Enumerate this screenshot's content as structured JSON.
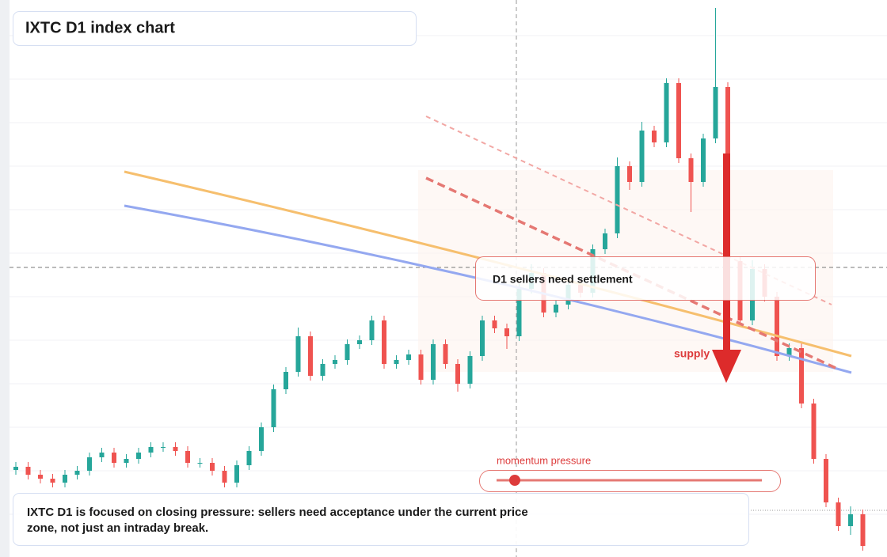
{
  "header": {
    "title": "IXTC D1 index chart"
  },
  "chart_data": {
    "type": "candlestick",
    "ylim": [
      0,
      704
    ],
    "up_color": "#26a69a",
    "down_color": "#ef5350",
    "open": [
      110,
      114,
      104,
      99,
      94,
      104,
      109,
      126,
      132,
      119,
      124,
      132,
      139,
      139,
      134,
      119,
      119,
      109,
      94,
      116,
      134,
      164,
      212,
      234,
      279,
      229,
      244,
      249,
      269,
      274,
      299,
      244,
      249,
      256,
      224,
      269,
      244,
      219,
      254,
      299,
      289,
      279,
      339,
      359,
      309,
      319,
      344,
      334,
      389,
      409,
      494,
      474,
      539,
      524,
      599,
      504,
      474,
      529,
      594,
      374,
      299,
      364,
      329,
      254,
      264,
      194,
      124,
      69,
      39,
      54
    ],
    "high": [
      120,
      120,
      110,
      105,
      110,
      115,
      132,
      138,
      138,
      130,
      138,
      145,
      145,
      145,
      140,
      125,
      125,
      115,
      122,
      140,
      170,
      218,
      240,
      290,
      285,
      250,
      255,
      275,
      280,
      305,
      305,
      255,
      262,
      262,
      275,
      275,
      250,
      260,
      305,
      305,
      295,
      345,
      370,
      365,
      325,
      350,
      350,
      395,
      415,
      505,
      500,
      550,
      545,
      605,
      605,
      510,
      535,
      694,
      600,
      380,
      375,
      370,
      335,
      270,
      270,
      200,
      130,
      75,
      64,
      60
    ],
    "low": [
      104,
      98,
      93,
      88,
      88,
      98,
      103,
      120,
      113,
      113,
      118,
      126,
      133,
      128,
      113,
      113,
      103,
      88,
      88,
      110,
      128,
      158,
      206,
      228,
      223,
      223,
      238,
      243,
      263,
      268,
      238,
      238,
      243,
      218,
      218,
      238,
      209,
      213,
      248,
      283,
      263,
      273,
      333,
      303,
      303,
      313,
      328,
      328,
      383,
      403,
      464,
      468,
      518,
      518,
      498,
      436,
      468,
      523,
      368,
      293,
      293,
      323,
      248,
      248,
      188,
      118,
      63,
      33,
      28,
      8
    ],
    "close": [
      114,
      104,
      99,
      94,
      104,
      109,
      126,
      132,
      119,
      124,
      132,
      139,
      139,
      134,
      119,
      119,
      109,
      94,
      116,
      134,
      164,
      212,
      234,
      279,
      229,
      244,
      249,
      269,
      274,
      299,
      244,
      249,
      256,
      224,
      269,
      244,
      219,
      254,
      299,
      289,
      279,
      339,
      359,
      309,
      319,
      344,
      334,
      389,
      409,
      494,
      474,
      539,
      524,
      599,
      504,
      474,
      529,
      594,
      374,
      299,
      364,
      329,
      254,
      264,
      194,
      124,
      69,
      39,
      54,
      14
    ]
  },
  "annotations": {
    "settlement": "D1 sellers need settlement",
    "supply": "supply",
    "momentum": "momentum pressure",
    "note": [
      "IXTC D1 is focused on closing pressure: sellers need acceptance under the current price",
      "zone, not just an intraday break."
    ]
  }
}
